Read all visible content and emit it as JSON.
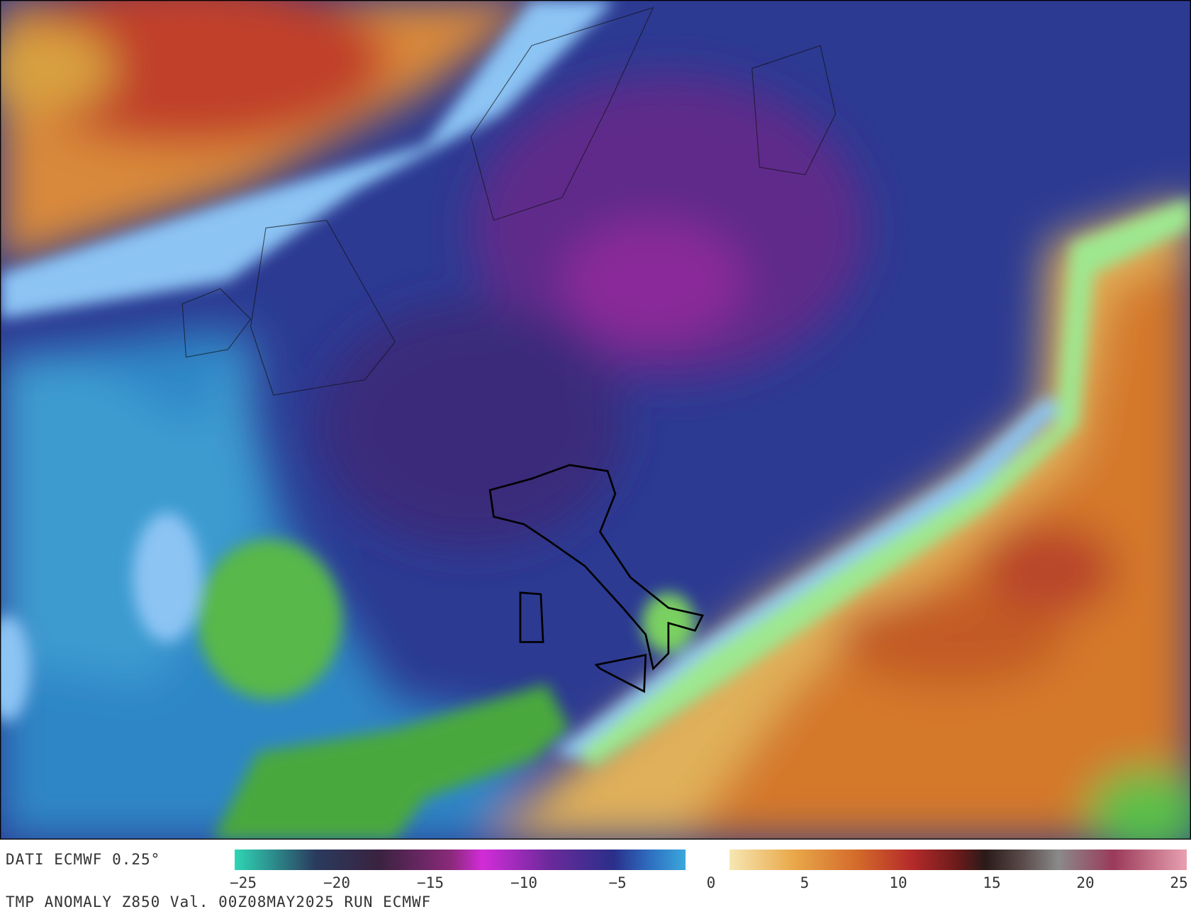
{
  "footer": {
    "source": "DATI ECMWF 0.25°",
    "title": "TMP ANOMALY Z850 Val. 00Z08MAY2025 RUN ECMWF"
  },
  "colorbar": {
    "range": [
      -25,
      25
    ],
    "ticks": [
      {
        "value": -25,
        "label": "−25"
      },
      {
        "value": -20,
        "label": "−20"
      },
      {
        "value": -15,
        "label": "−15"
      },
      {
        "value": -10,
        "label": "−10"
      },
      {
        "value": -5,
        "label": "−5"
      },
      0,
      5,
      10,
      15,
      20,
      25
    ]
  }
}
